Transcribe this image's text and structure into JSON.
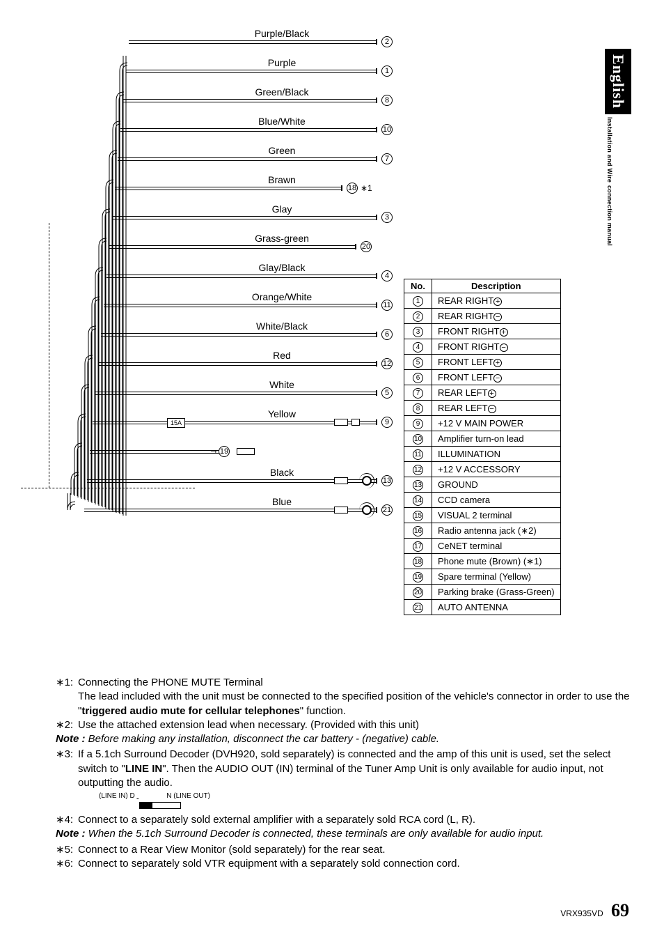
{
  "sideTab": {
    "main": "English",
    "sub1": "Installation and Wire",
    "sub2": "connection manual"
  },
  "wires": [
    {
      "label": "Purple/Black",
      "pin": "2"
    },
    {
      "label": "Purple",
      "pin": "1"
    },
    {
      "label": "Green/Black",
      "pin": "8"
    },
    {
      "label": "Blue/White",
      "pin": "10"
    },
    {
      "label": "Green",
      "pin": "7"
    },
    {
      "label": "Brawn",
      "pin": "18",
      "suffix": "∗1"
    },
    {
      "label": "Glay",
      "pin": "3"
    },
    {
      "label": "Grass-green",
      "pin": "20"
    },
    {
      "label": "Glay/Black",
      "pin": "4"
    },
    {
      "label": "Orange/White",
      "pin": "11"
    },
    {
      "label": "White/Black",
      "pin": "6"
    },
    {
      "label": "Red",
      "pin": "12"
    },
    {
      "label": "White",
      "pin": "5"
    },
    {
      "label": "Yellow",
      "pin": "9",
      "fuse": "15A",
      "plug": true
    },
    {
      "label": "",
      "pin": "19",
      "spare": true
    },
    {
      "label": "Black",
      "pin": "13",
      "ring": true
    },
    {
      "label": "Blue",
      "pin": "21",
      "ring": true
    }
  ],
  "tableHeaders": {
    "no": "No.",
    "desc": "Description"
  },
  "tableRows": [
    {
      "no": "1",
      "desc": "REAR RIGHT",
      "sym": "+"
    },
    {
      "no": "2",
      "desc": "REAR RIGHT",
      "sym": "-"
    },
    {
      "no": "3",
      "desc": "FRONT RIGHT",
      "sym": "+"
    },
    {
      "no": "4",
      "desc": "FRONT RIGHT",
      "sym": "-"
    },
    {
      "no": "5",
      "desc": "FRONT LEFT",
      "sym": "+"
    },
    {
      "no": "6",
      "desc": "FRONT LEFT",
      "sym": "-"
    },
    {
      "no": "7",
      "desc": "REAR LEFT",
      "sym": "+"
    },
    {
      "no": "8",
      "desc": "REAR LEFT",
      "sym": "-"
    },
    {
      "no": "9",
      "desc": "+12 V MAIN POWER"
    },
    {
      "no": "10",
      "desc": "Amplifier turn-on lead"
    },
    {
      "no": "11",
      "desc": "ILLUMINATION"
    },
    {
      "no": "12",
      "desc": "+12 V ACCESSORY"
    },
    {
      "no": "13",
      "desc": "GROUND"
    },
    {
      "no": "14",
      "desc": "CCD camera"
    },
    {
      "no": "15",
      "desc": "VISUAL 2 terminal"
    },
    {
      "no": "16",
      "desc": "Radio antenna jack (∗2)"
    },
    {
      "no": "17",
      "desc": "CeNET terminal"
    },
    {
      "no": "18",
      "desc": "Phone mute (Brown) (∗1)"
    },
    {
      "no": "19",
      "desc": "Spare terminal (Yellow)"
    },
    {
      "no": "20",
      "desc": "Parking brake (Grass-Green)"
    },
    {
      "no": "21",
      "desc": "AUTO ANTENNA"
    }
  ],
  "notes": {
    "n1lbl": "∗1:",
    "n1a": "Connecting the PHONE MUTE Terminal",
    "n1b_pre": "The lead included with the unit must be connected to the specified position of the vehicle's connector in order to use the \"",
    "n1b_bold": "triggered audio mute for cellular telephones",
    "n1b_post": "\" function.",
    "n2lbl": "∗2:",
    "n2": "Use the attached extension lead when necessary. (Provided with this unit)",
    "note1lbl": "Note :",
    "note1": " Before making any installation, disconnect the car battery - (negative) cable.",
    "n3lbl": "∗3:",
    "n3_pre": "If a 5.1ch Surround Decoder (DVH920, sold separately) is connected and the amp of this unit is used, set the select switch to \"",
    "n3_bold": "LINE IN",
    "n3_post": "\". Then the AUDIO OUT (IN) terminal of the Tuner Amp Unit is only available for audio input, not outputting the audio.",
    "switch_l": "(LINE IN) D",
    "switch_r": "N (LINE OUT)",
    "n4lbl": "∗4:",
    "n4": "Connect to a separately sold external amplifier with a separately sold RCA cord (L, R).",
    "note2lbl": "Note :",
    "note2": " When the 5.1ch Surround Decoder is connected, these terminals are only available for audio input.",
    "n5lbl": "∗5:",
    "n5": "Connect to a Rear View Monitor (sold separately) for the rear seat.",
    "n6lbl": "∗6:",
    "n6": "Connect to separately sold VTR equipment with a separately sold connection cord."
  },
  "footer": {
    "model": "VRX935VD",
    "page": "69"
  }
}
